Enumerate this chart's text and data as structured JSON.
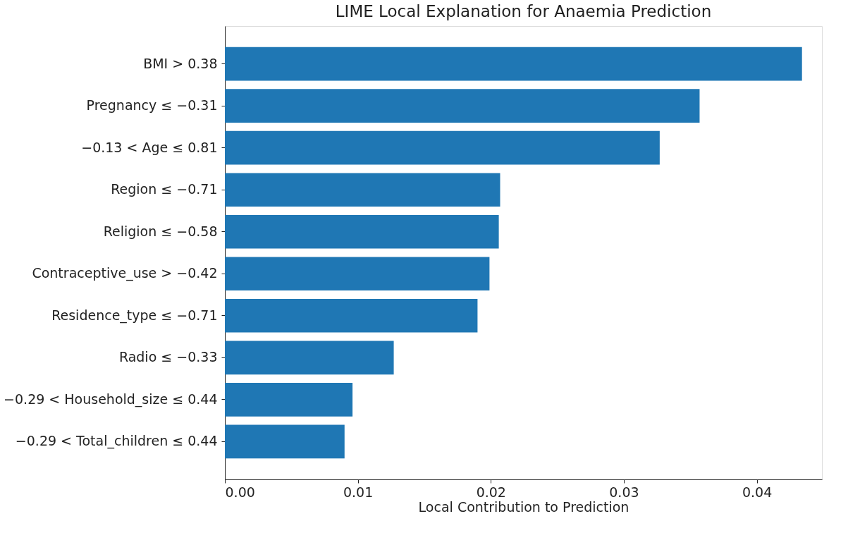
{
  "chart_data": {
    "type": "bar",
    "orientation": "horizontal",
    "title": "LIME Local Explanation for Anaemia Prediction",
    "xlabel": "Local Contribution to Prediction",
    "categories": [
      "BMI > 0.38",
      "Pregnancy ≤ −0.31",
      "−0.13 < Age ≤ 0.81",
      "Region ≤ −0.71",
      "Religion ≤ −0.58",
      "Contraceptive_use > −0.42",
      "Residence_type ≤ −0.71",
      "Radio ≤ −0.33",
      "−0.29 < Household_size ≤ 0.44",
      "−0.29 < Total_children ≤ 0.44"
    ],
    "values": [
      0.0434,
      0.0357,
      0.0327,
      0.0207,
      0.0206,
      0.0199,
      0.019,
      0.0127,
      0.0096,
      0.009
    ],
    "color": "#1f77b4",
    "xlim": [
      0,
      0.0449
    ],
    "xticks": [
      {
        "value": 0,
        "label": "0.00"
      },
      {
        "value": 0.01,
        "label": "0.01"
      },
      {
        "value": 0.02,
        "label": "0.02"
      },
      {
        "value": 0.03,
        "label": "0.03"
      },
      {
        "value": 0.04,
        "label": "0.04"
      }
    ],
    "grid": false
  }
}
